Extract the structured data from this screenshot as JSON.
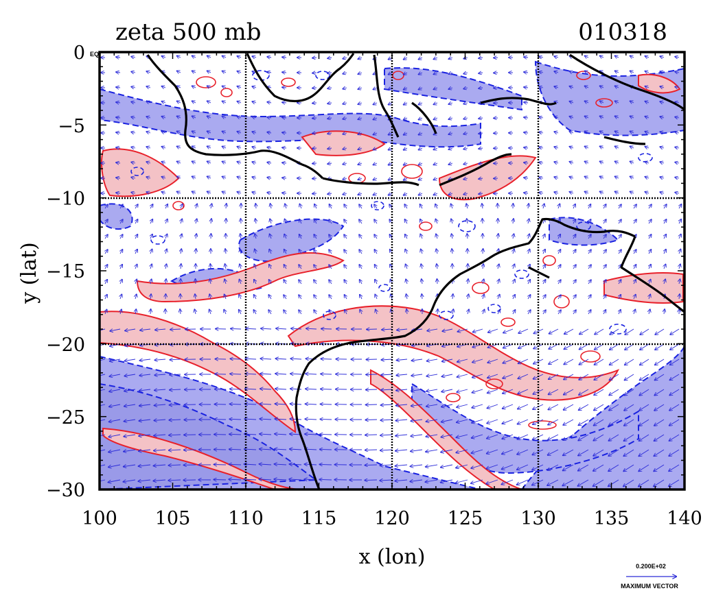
{
  "title_left": "zeta 500 mb",
  "title_right": "010318",
  "xlabel": "x (lon)",
  "ylabel": "y (lat)",
  "x_ticks": [
    "100",
    "105",
    "110",
    "115",
    "120",
    "125",
    "130",
    "135",
    "140"
  ],
  "y_ticks": [
    "0",
    "−5",
    "−10",
    "−15",
    "−20",
    "−25",
    "−30"
  ],
  "eq_label": "EQ",
  "vector_legend": {
    "value": "0.200E+02",
    "label": "MAXIMUM VECTOR"
  },
  "map": {
    "lon_range": [
      100,
      140
    ],
    "lat_range": [
      -30,
      0
    ],
    "grid_lon": [
      110,
      120,
      130
    ],
    "grid_lat": [
      -10,
      -20
    ],
    "colors": {
      "positive_fill": "#f4c2c6",
      "positive_line": "#e8202a",
      "negative_fill": "#aaaaf0",
      "negative_line": "#1a22e0",
      "coast": "#000000",
      "vectors": "#2a2ad8"
    }
  }
}
